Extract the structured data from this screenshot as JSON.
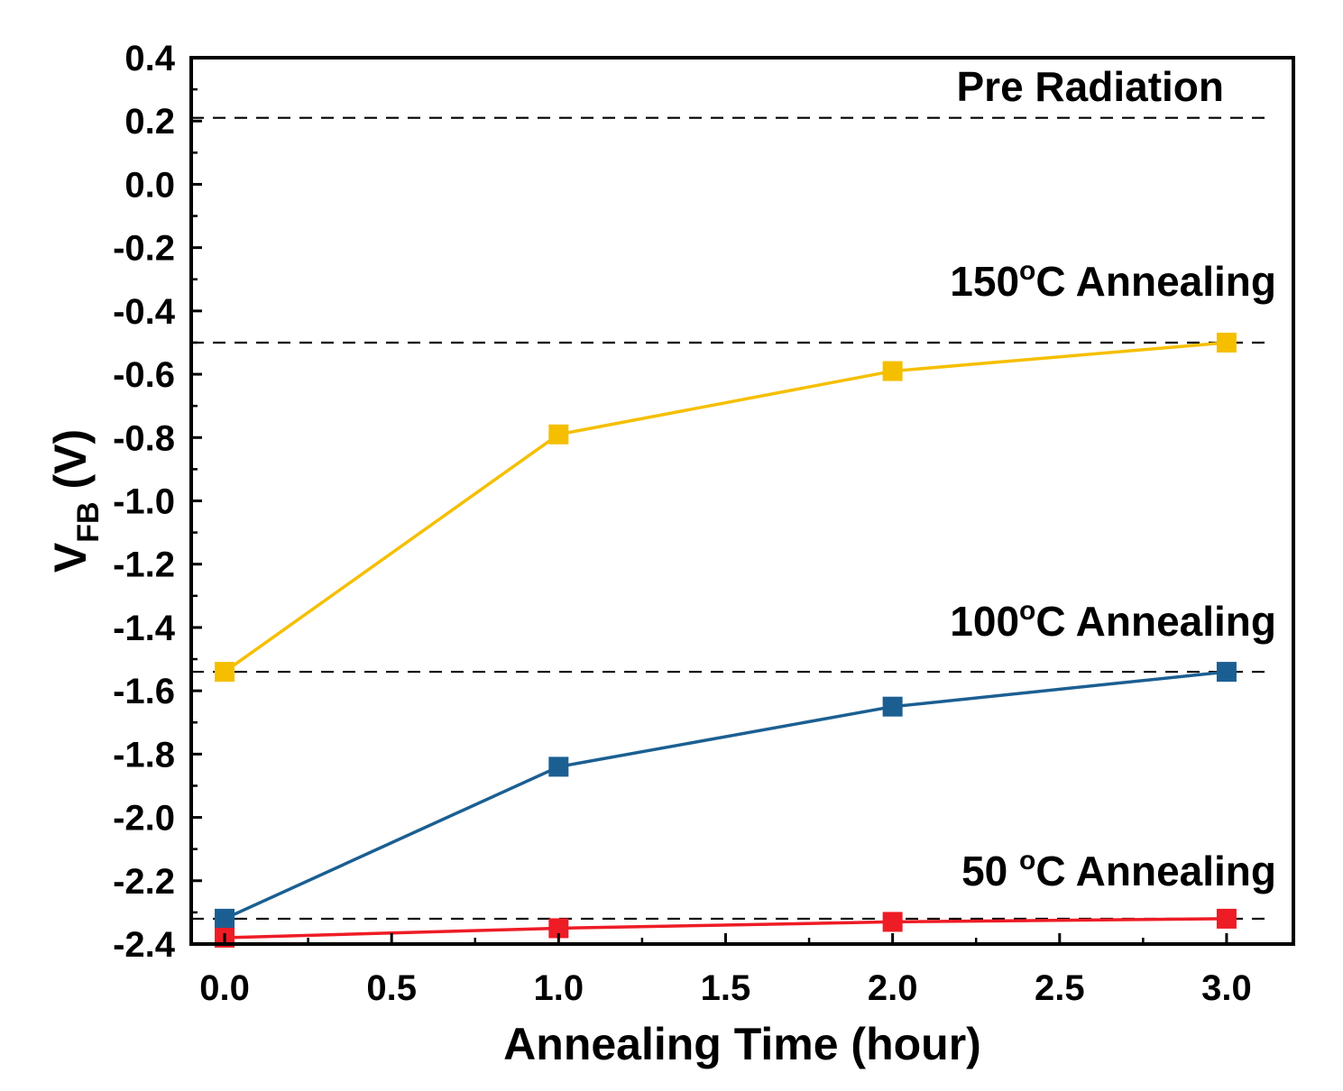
{
  "chart_data": {
    "type": "line",
    "xlabel": "Annealing Time (hour)",
    "ylabel": {
      "main": "V",
      "sub": "FB",
      "unit": " (V)"
    },
    "xlim": [
      -0.1,
      3.2
    ],
    "ylim": [
      -2.4,
      0.4
    ],
    "xticks": [
      0.0,
      0.5,
      1.0,
      1.5,
      2.0,
      2.5,
      3.0
    ],
    "xtick_labels": [
      "0.0",
      "0.5",
      "1.0",
      "1.5",
      "2.0",
      "2.5",
      "3.0"
    ],
    "yticks": [
      0.4,
      0.2,
      0.0,
      -0.2,
      -0.4,
      -0.6,
      -0.8,
      -1.0,
      -1.2,
      -1.4,
      -1.6,
      -1.8,
      -2.0,
      -2.2,
      -2.4
    ],
    "ytick_labels": [
      "0.4",
      "0.2",
      "0.0",
      "-0.2",
      "-0.4",
      "-0.6",
      "-0.8",
      "-1.0",
      "-1.2",
      "-1.4",
      "-1.6",
      "-1.8",
      "-2.0",
      "-2.2",
      "-2.4"
    ],
    "x": [
      0,
      1,
      2,
      3
    ],
    "series": [
      {
        "name": "150°C Annealing",
        "color": "#f5bf00",
        "values": [
          -1.54,
          -0.79,
          -0.59,
          -0.5
        ]
      },
      {
        "name": "100°C Annealing",
        "color": "#1b5f92",
        "values": [
          -2.32,
          -1.84,
          -1.65,
          -1.54
        ]
      },
      {
        "name": "50 °C Annealing",
        "color": "#ee1c25",
        "values": [
          -2.38,
          -2.35,
          -2.33,
          -2.32
        ]
      }
    ],
    "reference_lines": [
      {
        "name": "pre-radiation",
        "y": 0.21,
        "label": "Pre Radiation"
      },
      {
        "name": "150c",
        "y": -0.5,
        "label_parts": [
          "150",
          "o",
          "C Annealing"
        ]
      },
      {
        "name": "100c",
        "y": -1.54,
        "label_parts": [
          "100",
          "o",
          "C Annealing"
        ]
      },
      {
        "name": "50c",
        "y": -2.32,
        "label_parts": [
          "50 ",
          "o",
          "C Annealing"
        ]
      }
    ]
  }
}
